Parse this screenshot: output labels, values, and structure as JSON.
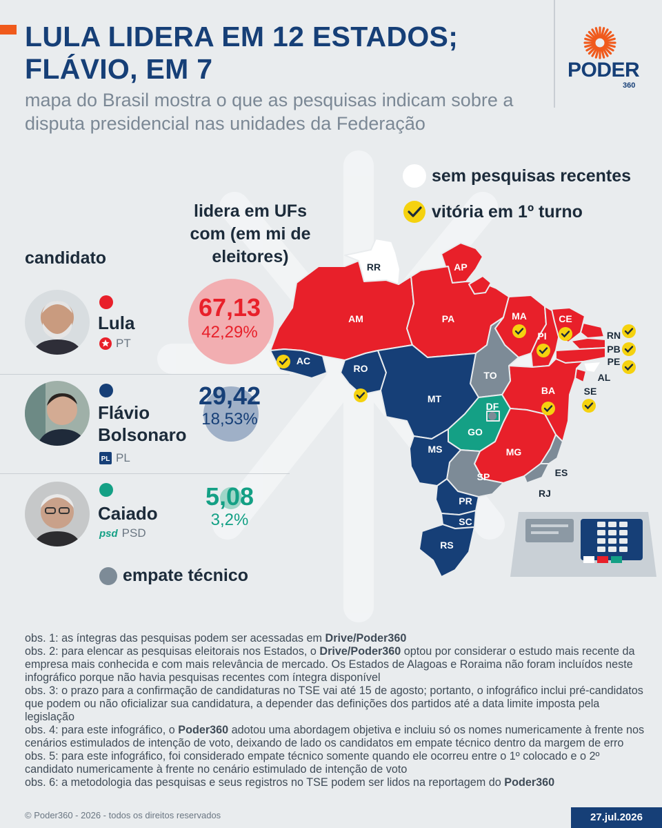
{
  "header": {
    "title": "LULA LIDERA EM 12 ESTADOS; FLÁVIO, EM 7",
    "subtitle": "mapa do Brasil mostra o que as pesquisas indicam sobre a disputa presidencial nas unidades da Federação"
  },
  "logo": {
    "text": "PODER",
    "sub": "360"
  },
  "legend": {
    "no_polls": "sem pesquisas recentes",
    "first_round": "vitória em 1º turno",
    "tie": "empate técnico"
  },
  "columns": {
    "candidate": "candidato",
    "lead": "lidera em UFs com (em mi de eleitores)"
  },
  "candidates": [
    {
      "name": "Lula",
      "party": "PT",
      "voters": "67,13",
      "share": "42,29%",
      "color": "#e8202a",
      "bubble": "#f2aeb1"
    },
    {
      "name": "Flávio Bolsonaro",
      "party": "PL",
      "voters": "29,42",
      "share": "18,53%",
      "color": "#163f77",
      "bubble": "#9fb0c7"
    },
    {
      "name": "Caiado",
      "party": "PSD",
      "party_logo": "psd",
      "voters": "5,08",
      "share": "3,2%",
      "color": "#14a085",
      "bubble": "#9fd6c8"
    }
  ],
  "colors": {
    "lula": "#e8202a",
    "flavio": "#163f77",
    "caiado": "#14a085",
    "tie": "#7d8b97",
    "none": "#ffffff",
    "check": "#f5d20f"
  },
  "map_labels": {
    "RR": "RR",
    "AP": "AP",
    "AM": "AM",
    "PA": "PA",
    "MA": "MA",
    "CE": "CE",
    "PI": "PI",
    "RN": "RN",
    "PB": "PB",
    "PE": "PE",
    "AL": "AL",
    "SE": "SE",
    "BA": "BA",
    "TO": "TO",
    "AC": "AC",
    "RO": "RO",
    "MT": "MT",
    "DF": "DF",
    "GO": "GO",
    "MG": "MG",
    "ES": "ES",
    "RJ": "RJ",
    "SP": "SP",
    "MS": "MS",
    "PR": "PR",
    "SC": "SC",
    "RS": "RS"
  },
  "notes": [
    {
      "pre": "obs. 1: as íntegras das pesquisas podem ser acessadas em ",
      "bold": "Drive/Poder360",
      "post": ""
    },
    {
      "pre": "obs. 2: para elencar as pesquisas eleitorais nos Estados, o ",
      "bold": "Drive/Poder360",
      "post": " optou por considerar o estudo mais recente da empresa mais conhecida e com mais relevância de mercado. Os Estados de Alagoas e Roraima não foram incluídos neste infográfico porque não havia pesquisas recentes com íntegra disponível"
    },
    {
      "pre": "obs. 3: o prazo para a confirmação de candidaturas no TSE vai até 15 de agosto; portanto, o infográfico inclui pré-candidatos que podem ou não oficializar sua candidatura, a depender das definições dos partidos até a data limite imposta pela legislação",
      "bold": "",
      "post": ""
    },
    {
      "pre": "obs. 4: para este infográfico, o ",
      "bold": "Poder360",
      "post": " adotou uma abordagem objetiva e incluiu só os nomes numericamente à frente nos cenários estimulados de intenção de voto, deixando de lado os candidatos em empate técnico dentro da margem de erro"
    },
    {
      "pre": "obs. 5: para este infográfico, foi considerado empate técnico somente quando ele ocorreu entre o 1º colocado e o 2º candidato numericamente à frente no cenário estimulado de intenção de voto",
      "bold": "",
      "post": ""
    },
    {
      "pre": "obs. 6: a metodologia das pesquisas e seus registros no TSE podem ser lidos na reportagem do ",
      "bold": "Poder360",
      "post": ""
    }
  ],
  "footer": {
    "copyright": "© Poder360 - 2026 - todos os direitos reservados",
    "date": "27.jul.2026"
  }
}
